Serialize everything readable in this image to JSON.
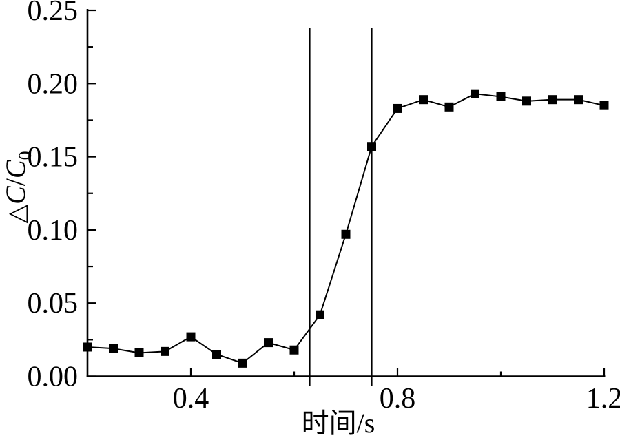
{
  "chart_data": {
    "type": "line",
    "title": "",
    "xlabel": "时间/s",
    "ylabel": "△C/C₀",
    "ylabel_parts": [
      {
        "text": "△",
        "style": "normal"
      },
      {
        "text": "C",
        "style": "italic"
      },
      {
        "text": "/",
        "style": "normal"
      },
      {
        "text": "C",
        "style": "italic"
      },
      {
        "text": "0",
        "style": "subscript"
      }
    ],
    "x": [
      0.2,
      0.25,
      0.3,
      0.35,
      0.4,
      0.45,
      0.5,
      0.55,
      0.6,
      0.65,
      0.7,
      0.75,
      0.8,
      0.85,
      0.9,
      0.95,
      1.0,
      1.05,
      1.1,
      1.15,
      1.2
    ],
    "y": [
      0.02,
      0.019,
      0.016,
      0.017,
      0.027,
      0.015,
      0.009,
      0.023,
      0.018,
      0.042,
      0.097,
      0.157,
      0.183,
      0.189,
      0.184,
      0.193,
      0.191,
      0.188,
      0.189,
      0.189,
      0.185
    ],
    "xlim": [
      0.2,
      1.2
    ],
    "ylim": [
      0.0,
      0.25
    ],
    "x_ticks_major": [
      0.4,
      0.8,
      1.2
    ],
    "x_ticks_minor": [
      0.6,
      1.0
    ],
    "y_ticks_major": [
      0.0,
      0.05,
      0.1,
      0.15,
      0.2,
      0.25
    ],
    "y_ticks_minor": [
      0.025,
      0.075,
      0.125,
      0.175,
      0.225
    ],
    "x_tick_decimals": 1,
    "y_tick_decimals": 2,
    "vertical_lines": [
      0.63,
      0.75
    ],
    "marker": "square",
    "grid": false,
    "legend": "none",
    "colors": {
      "line": "#000000",
      "marker": "#000000",
      "axis": "#000000",
      "reference_line": "#000000",
      "background": "#ffffff"
    }
  }
}
